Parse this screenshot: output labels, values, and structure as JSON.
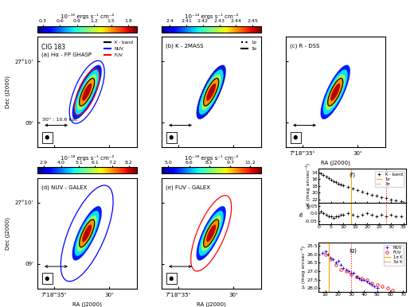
{
  "map_axes": {
    "xlim": [
      36.5,
      27.5
    ],
    "xticks": [
      {
        "value": 35,
        "label": "7ʰ18ᵐ35ˢ"
      },
      {
        "value": 30,
        "label": "30ˢ"
      }
    ],
    "ylim": [
      8.6,
      10.4
    ],
    "yticks": [
      {
        "value": 10,
        "label": "27°10'"
      },
      {
        "value": 9,
        "label": "09'"
      }
    ],
    "xlabel": "RA (J2000)",
    "ylabel": "Dec (J2000)"
  },
  "maps": [
    {
      "panel": "(a) Hα - FP GHASP",
      "title": "CIG 183",
      "tick_labels": "y",
      "scale_text": "30'' : 10.6 kpc",
      "colorbar": {
        "label": "10⁻¹⁵ ergs s⁻¹ cm⁻²",
        "range": [
          0.2,
          1.95
        ],
        "ticks": [
          0.3,
          0.6,
          0.9,
          1.2,
          1.5,
          1.8
        ]
      },
      "legend": [
        {
          "name": "K - band",
          "color": "black",
          "line_style": "solid"
        },
        {
          "name": "NUV",
          "color": "blue",
          "line_style": "solid"
        },
        {
          "name": "FUV",
          "color": "red",
          "line_style": "solid"
        }
      ]
    },
    {
      "panel": "(b) K - 2MASS",
      "tick_labels": false,
      "colorbar": {
        "label": "10⁻¹⁴ ergs s⁻¹ cm⁻²",
        "range": [
          2.395,
          2.455
        ],
        "ticks": [
          2.4,
          2.41,
          2.42,
          2.43,
          2.44,
          2.45
        ]
      },
      "legend": [
        {
          "name": "1σ",
          "color": "black",
          "line_style": "dotted"
        },
        {
          "name": "3σ",
          "color": "black",
          "line_style": "solid"
        }
      ]
    },
    {
      "panel": "(c) R - DSS",
      "tick_labels": "x"
    },
    {
      "panel": "(d) NUV - GALEX",
      "tick_labels": true,
      "colorbar": {
        "label": "10⁻¹⁸ ergs s⁻¹ cm⁻²",
        "range": [
          2.5,
          8.7
        ],
        "ticks": [
          2.9,
          4.0,
          5.1,
          6.1,
          7.2,
          8.2
        ]
      }
    },
    {
      "panel": "(e) FUV - GALEX",
      "tick_labels": "x",
      "colorbar": {
        "label": "10⁻¹⁸ ergs s⁻¹ cm⁻²",
        "range": [
          4.5,
          12.0
        ],
        "ticks": [
          5.0,
          6.6,
          8.1,
          9.7,
          11.2
        ]
      }
    }
  ],
  "chart_data": [
    {
      "type": "scatter",
      "title": "(f)",
      "ylabel": "μK (mag arcsec⁻²)",
      "tick_labels": "y",
      "xlim": [
        0,
        36
      ],
      "xticks": [
        0,
        5,
        10,
        15,
        20,
        25,
        30,
        35
      ],
      "ylim": [
        23,
        13
      ],
      "yticks": [
        14,
        16,
        18,
        20,
        22
      ],
      "legend": "upper right",
      "series": [
        {
          "name": "K - band",
          "color": "black",
          "marker": "plus",
          "x": [
            1,
            2,
            3,
            4,
            5,
            6,
            7,
            8,
            9,
            10,
            12,
            14,
            16,
            18,
            20,
            22,
            24,
            26,
            28,
            30,
            32,
            34
          ],
          "values": [
            14.3,
            14.8,
            15.3,
            15.8,
            16.2,
            16.6,
            17.0,
            17.3,
            17.6,
            17.9,
            18.4,
            18.9,
            19.3,
            19.8,
            20.2,
            20.6,
            21.0,
            21.3,
            21.7,
            22.0,
            22.3,
            22.6
          ]
        },
        {
          "name": "1σ",
          "type": "vline",
          "color": "orange",
          "line_style": "solid",
          "x": [
            13.5
          ]
        },
        {
          "name": "3σ",
          "type": "vline",
          "color": "red",
          "line_style": "dotted",
          "x": [
            28
          ]
        }
      ]
    },
    {
      "type": "scatter",
      "ylabel": "B₄",
      "tick_labels": true,
      "xlim": [
        0,
        36
      ],
      "xticks": [
        0,
        5,
        10,
        15,
        20,
        25,
        30,
        35
      ],
      "ylim": [
        -0.07,
        0.07
      ],
      "yticks": [
        -0.05,
        0.0,
        0.05
      ],
      "series": [
        {
          "color": "black",
          "marker": "plus",
          "x": [
            1,
            2,
            3,
            4,
            5,
            6,
            7,
            8,
            9,
            10,
            12,
            14,
            16,
            18,
            20,
            22,
            24,
            26,
            28,
            30,
            32,
            34
          ],
          "values": [
            0.01,
            0.0,
            -0.01,
            -0.02,
            -0.02,
            -0.03,
            -0.02,
            -0.02,
            -0.01,
            -0.01,
            0.0,
            -0.01,
            -0.02,
            -0.01,
            0.0,
            -0.01,
            -0.02,
            -0.01,
            -0.02,
            -0.01,
            -0.02,
            -0.02
          ]
        },
        {
          "type": "vline",
          "color": "orange",
          "line_style": "solid",
          "x": [
            13.5
          ]
        },
        {
          "type": "vline",
          "color": "red",
          "line_style": "dotted",
          "x": [
            28
          ]
        }
      ]
    },
    {
      "type": "scatter",
      "title": "(g)",
      "ylabel": "μ (mag arcsec⁻²)",
      "tick_labels": true,
      "xlim": [
        5,
        72
      ],
      "xticks": [
        10,
        20,
        30,
        40,
        50,
        60,
        70
      ],
      "ylim": [
        28.2,
        25.3
      ],
      "yticks": [
        25.5,
        26.0,
        26.5,
        27.0,
        27.5,
        28.0
      ],
      "legend": "upper right",
      "series": [
        {
          "name": "NUV",
          "color": "blue",
          "marker": "plus",
          "x": [
            8,
            10,
            12,
            14,
            16,
            18,
            20,
            22,
            24,
            26,
            28,
            30,
            32,
            34,
            36,
            38,
            40,
            42,
            44,
            46,
            48,
            50
          ],
          "values": [
            25.9,
            25.8,
            26.0,
            26.2,
            26.3,
            26.5,
            26.4,
            26.6,
            26.8,
            26.9,
            27.0,
            27.1,
            27.1,
            27.3,
            27.4,
            27.5,
            27.5,
            27.6,
            27.7,
            27.8,
            27.9,
            28.0
          ]
        },
        {
          "name": "FUV",
          "color": "red",
          "marker": "circle",
          "x": [
            10,
            14,
            18,
            22,
            26,
            30,
            34,
            38,
            42,
            46,
            50,
            54,
            58,
            62
          ],
          "values": [
            26.0,
            26.3,
            26.6,
            26.9,
            27.0,
            27.2,
            27.3,
            27.4,
            27.5,
            27.7,
            27.8,
            27.9,
            28.0,
            28.1
          ]
        },
        {
          "name": "1σ K",
          "type": "vline",
          "color": "orange",
          "line_style": "solid",
          "x": [
            13
          ]
        },
        {
          "name": "3σ K",
          "type": "vline",
          "color": "red",
          "line_style": "dotted",
          "x": [
            30
          ]
        }
      ]
    }
  ]
}
